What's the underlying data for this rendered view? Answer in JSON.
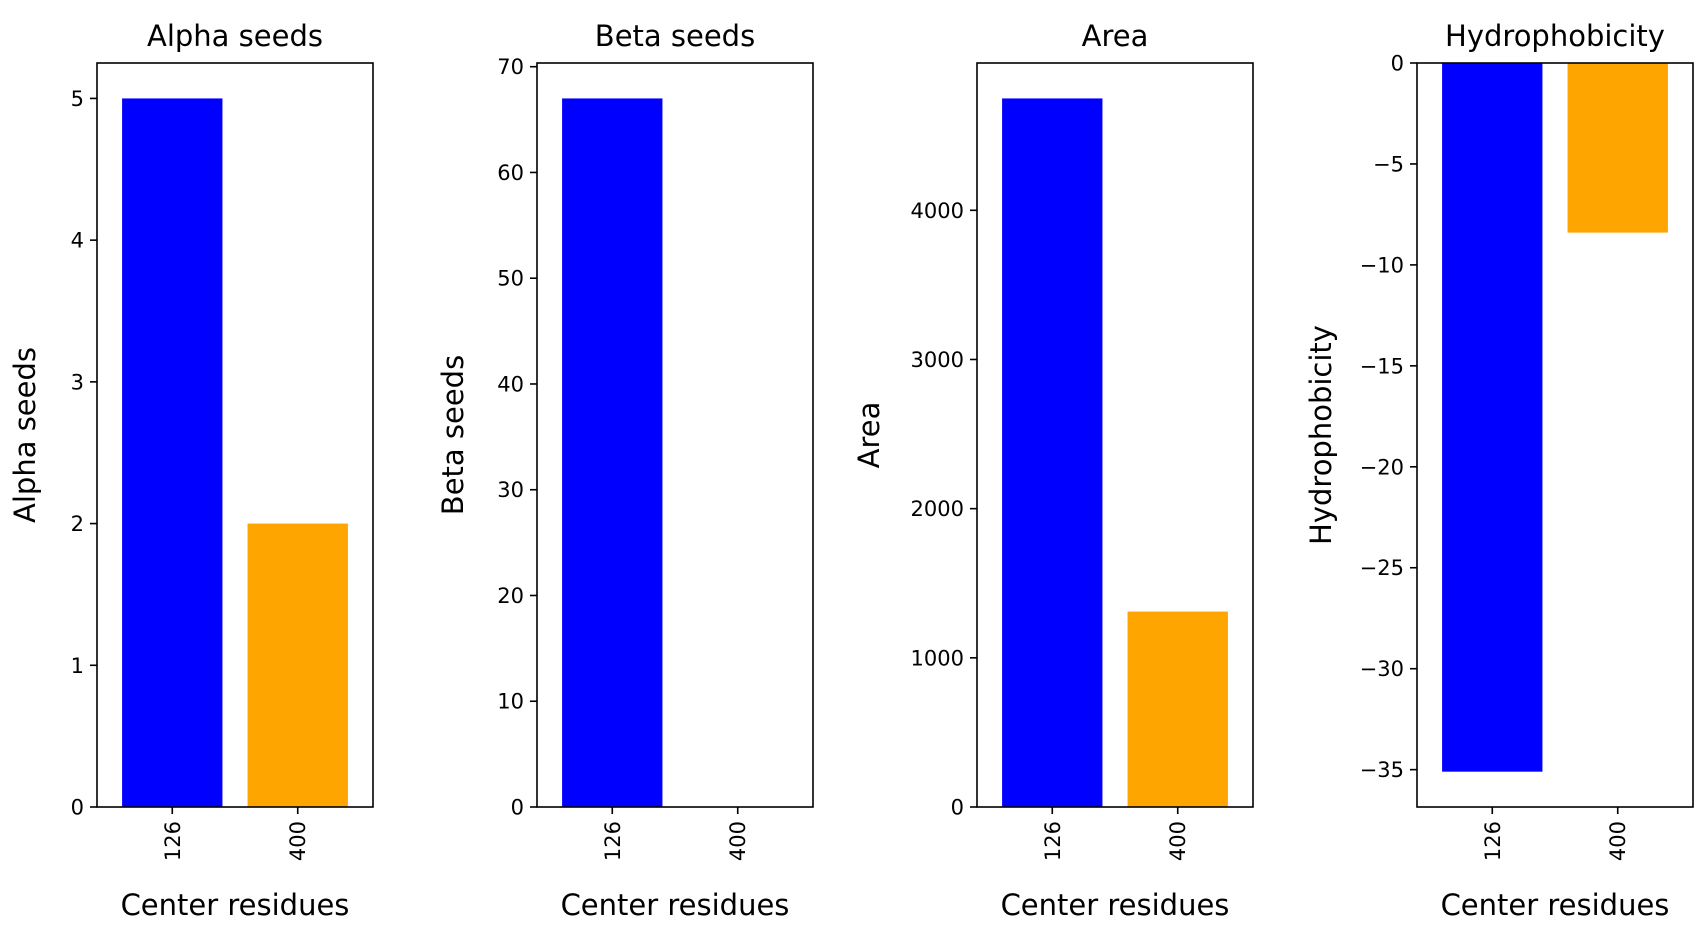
{
  "chart_data": [
    {
      "type": "bar",
      "title": "Alpha seeds",
      "xlabel": "Center residues",
      "ylabel": "Alpha seeds",
      "categories": [
        "126",
        "400"
      ],
      "values": [
        5,
        2
      ],
      "colors": [
        "#0000ff",
        "#ffa500"
      ],
      "ylim": [
        0,
        5.25
      ],
      "yticks": [
        0,
        1,
        2,
        3,
        4,
        5
      ],
      "ytick_labels": [
        "0",
        "1",
        "2",
        "3",
        "4",
        "5"
      ],
      "grid": false,
      "xtick_rotation": 90
    },
    {
      "type": "bar",
      "title": "Beta seeds",
      "xlabel": "Center residues",
      "ylabel": "Beta seeds",
      "categories": [
        "126",
        "400"
      ],
      "values": [
        67,
        0
      ],
      "colors": [
        "#0000ff",
        "#ffa500"
      ],
      "ylim": [
        0,
        70.35
      ],
      "yticks": [
        0,
        10,
        20,
        30,
        40,
        50,
        60,
        70
      ],
      "ytick_labels": [
        "0",
        "10",
        "20",
        "30",
        "40",
        "50",
        "60",
        "70"
      ],
      "grid": false,
      "xtick_rotation": 90
    },
    {
      "type": "bar",
      "title": "Area",
      "xlabel": "Center residues",
      "ylabel": "Area",
      "categories": [
        "126",
        "400"
      ],
      "values": [
        4750,
        1310
      ],
      "colors": [
        "#0000ff",
        "#ffa500"
      ],
      "ylim": [
        0,
        4987.5
      ],
      "yticks": [
        0,
        1000,
        2000,
        3000,
        4000
      ],
      "ytick_labels": [
        "0",
        "1000",
        "2000",
        "3000",
        "4000"
      ],
      "grid": false,
      "xtick_rotation": 90
    },
    {
      "type": "bar",
      "title": "Hydrophobicity",
      "xlabel": "Center residues",
      "ylabel": "Hydrophobicity",
      "categories": [
        "126",
        "400"
      ],
      "values": [
        -35.1,
        -8.4
      ],
      "colors": [
        "#0000ff",
        "#ffa500"
      ],
      "ylim": [
        -36.85,
        0
      ],
      "yticks": [
        0,
        -5,
        -10,
        -15,
        -20,
        -25,
        -30,
        -35
      ],
      "ytick_labels": [
        "0",
        "−5",
        "−10",
        "−15",
        "−20",
        "−25",
        "−30",
        "−35"
      ],
      "grid": false,
      "xtick_rotation": 90
    }
  ]
}
